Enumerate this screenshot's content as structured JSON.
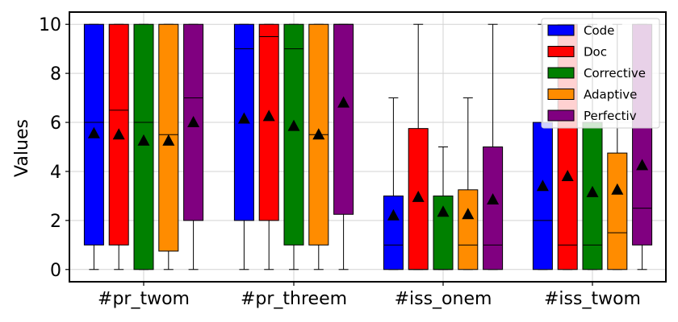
{
  "chart_data": {
    "type": "box",
    "title": "",
    "xlabel": "",
    "ylabel": "Values",
    "ylim": [
      -0.5,
      10.5
    ],
    "yticks": [
      0,
      2,
      4,
      6,
      8,
      10
    ],
    "grid": true,
    "legend_position": "top-right",
    "categories": [
      "#pr_twom",
      "#pr_threem",
      "#iss_onem",
      "#iss_twom"
    ],
    "series": [
      {
        "name": "Code",
        "color": "#0000ff",
        "boxes": [
          {
            "whisker_low": 0,
            "q1": 1,
            "median": 6,
            "q3": 10,
            "whisker_high": 10,
            "mean": 5.55
          },
          {
            "whisker_low": 0,
            "q1": 2,
            "median": 9,
            "q3": 10,
            "whisker_high": 10,
            "mean": 6.15
          },
          {
            "whisker_low": 0,
            "q1": 0,
            "median": 1,
            "q3": 3,
            "whisker_high": 7,
            "mean": 2.2
          },
          {
            "whisker_low": 0,
            "q1": 0,
            "median": 2,
            "q3": 6,
            "whisker_high": 10,
            "mean": 3.4
          }
        ]
      },
      {
        "name": "Doc",
        "color": "#ff0000",
        "boxes": [
          {
            "whisker_low": 0,
            "q1": 1,
            "median": 6.5,
            "q3": 10,
            "whisker_high": 10,
            "mean": 5.5
          },
          {
            "whisker_low": 0,
            "q1": 2,
            "median": 9.5,
            "q3": 10,
            "whisker_high": 10,
            "mean": 6.25
          },
          {
            "whisker_low": 0,
            "q1": 0,
            "median": 0,
            "q3": 5.75,
            "whisker_high": 10,
            "mean": 2.95
          },
          {
            "whisker_low": 0,
            "q1": 0,
            "median": 1,
            "q3": 10,
            "whisker_high": 10,
            "mean": 3.8
          }
        ]
      },
      {
        "name": "Corrective",
        "color": "#008000",
        "boxes": [
          {
            "whisker_low": 0,
            "q1": 0,
            "median": 6,
            "q3": 10,
            "whisker_high": 10,
            "mean": 5.25
          },
          {
            "whisker_low": 0,
            "q1": 1,
            "median": 9,
            "q3": 10,
            "whisker_high": 10,
            "mean": 5.85
          },
          {
            "whisker_low": 0,
            "q1": 0,
            "median": 0,
            "q3": 3,
            "whisker_high": 5,
            "mean": 2.35
          },
          {
            "whisker_low": 0,
            "q1": 0,
            "median": 1,
            "q3": 6,
            "whisker_high": 10,
            "mean": 3.15
          }
        ]
      },
      {
        "name": "Adaptive",
        "color": "#ff8c00",
        "boxes": [
          {
            "whisker_low": 0,
            "q1": 0.75,
            "median": 5.5,
            "q3": 10,
            "whisker_high": 10,
            "mean": 5.25
          },
          {
            "whisker_low": 0,
            "q1": 1,
            "median": 5.5,
            "q3": 10,
            "whisker_high": 10,
            "mean": 5.5
          },
          {
            "whisker_low": 0,
            "q1": 0,
            "median": 1,
            "q3": 3.25,
            "whisker_high": 7,
            "mean": 2.25
          },
          {
            "whisker_low": 0,
            "q1": 0,
            "median": 1.5,
            "q3": 4.75,
            "whisker_high": 10,
            "mean": 3.25
          }
        ]
      },
      {
        "name": "Perfectiv",
        "color": "#800080",
        "boxes": [
          {
            "whisker_low": 0,
            "q1": 2,
            "median": 7,
            "q3": 10,
            "whisker_high": 10,
            "mean": 6.0
          },
          {
            "whisker_low": 0,
            "q1": 2.25,
            "median": 10,
            "q3": 10,
            "whisker_high": 10,
            "mean": 6.8
          },
          {
            "whisker_low": 0,
            "q1": 0,
            "median": 1,
            "q3": 5,
            "whisker_high": 10,
            "mean": 2.85
          },
          {
            "whisker_low": 0,
            "q1": 1,
            "median": 2.5,
            "q3": 10,
            "whisker_high": 10,
            "mean": 4.25
          }
        ]
      }
    ]
  }
}
